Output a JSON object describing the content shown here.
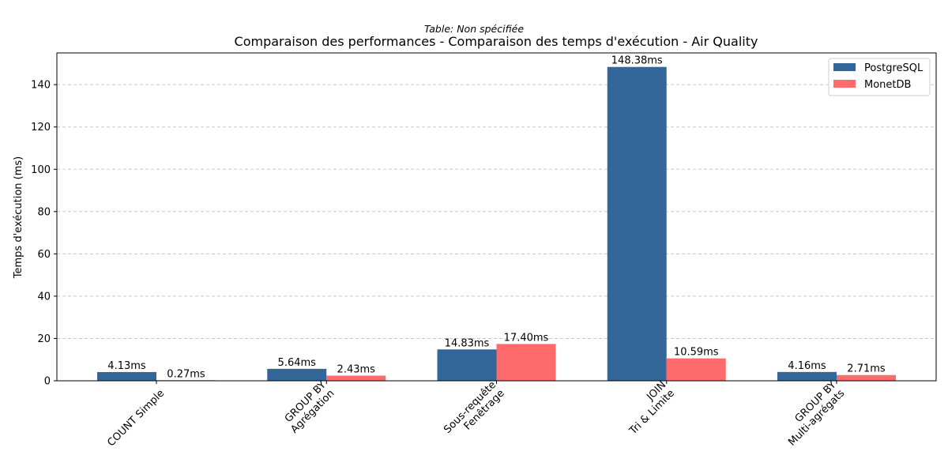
{
  "chart_data": {
    "type": "bar",
    "subtitle": "Table: Non spécifiée",
    "title": "Comparaison des performances - Comparaison des temps d'exécution - Air Quality",
    "xlabel": "",
    "ylabel": "Temps d'exécution (ms)",
    "ylim": [
      0,
      155
    ],
    "yticks": [
      0,
      20,
      40,
      60,
      80,
      100,
      120,
      140
    ],
    "grid": "y-dashed",
    "legend_position": "top-right",
    "categories": [
      [
        "COUNT Simple"
      ],
      [
        "GROUP BY",
        "Agrégation"
      ],
      [
        "Sous-requête",
        "Fenêtrage"
      ],
      [
        "JOIN",
        "Tri & Limite"
      ],
      [
        "GROUP BY",
        "Multi-agrégats"
      ]
    ],
    "series": [
      {
        "name": "PostgreSQL",
        "color": "#336699",
        "values": [
          4.13,
          5.64,
          14.83,
          148.38,
          4.16
        ]
      },
      {
        "name": "MonetDB",
        "color": "#ff6b6b",
        "values": [
          0.27,
          2.43,
          17.4,
          10.59,
          2.71
        ]
      }
    ],
    "data_label_suffix": "ms"
  }
}
